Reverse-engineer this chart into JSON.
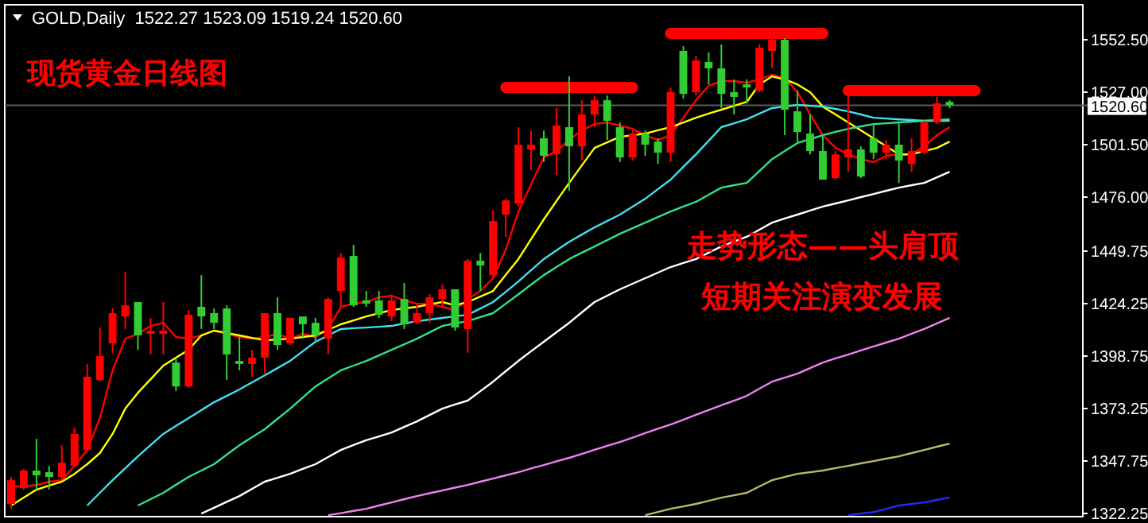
{
  "chart_data": {
    "type": "candlestick",
    "title": "GOLD,Daily  1522.27 1523.09 1519.24 1520.60",
    "annotations": [
      "现货黄金日线图",
      "走势形态——头肩顶",
      "短期关注演变发展"
    ],
    "categories": [
      null,
      null,
      null,
      null,
      null,
      null,
      null,
      null,
      null,
      null,
      null,
      null,
      null,
      null,
      null,
      null,
      null,
      null,
      null,
      null,
      null,
      null,
      null,
      null,
      null,
      null,
      null,
      null,
      null,
      null,
      null,
      null,
      null,
      null,
      null,
      null,
      null,
      null,
      null,
      null,
      null,
      null,
      null,
      null,
      null,
      null,
      null,
      null,
      null,
      null,
      null,
      null,
      null,
      null,
      null,
      null,
      null,
      null,
      null,
      null,
      null,
      null,
      null,
      null,
      null,
      null,
      null,
      null,
      null,
      null,
      null,
      null,
      null,
      null,
      null,
      null,
      null,
      null,
      null,
      null,
      null,
      null,
      null,
      null,
      null
    ],
    "ohlc": [
      [
        1326.9,
        1340.0,
        1324.5,
        1338.4
      ],
      [
        1334.6,
        1343.9,
        1333.8,
        1343.1
      ],
      [
        1343.1,
        1358.5,
        1333.8,
        1340.8
      ],
      [
        1342.3,
        1345.4,
        1333.8,
        1340.0
      ],
      [
        1340.0,
        1355.4,
        1338.4,
        1346.9
      ],
      [
        1345.4,
        1364.0,
        1345.4,
        1360.9
      ],
      [
        1353.1,
        1394.9,
        1353.1,
        1388.7
      ],
      [
        1387.1,
        1412.6,
        1386.3,
        1398.7
      ],
      [
        1404.9,
        1421.9,
        1400.3,
        1419.6
      ],
      [
        1418.0,
        1439.7,
        1411.9,
        1423.4
      ],
      [
        1425.0,
        1425.0,
        1401.8,
        1408.8
      ],
      [
        1409.5,
        1417.3,
        1399.5,
        1411.1
      ],
      [
        1409.5,
        1425.0,
        1399.5,
        1411.1
      ],
      [
        1395.6,
        1397.2,
        1381.7,
        1384.0
      ],
      [
        1384.0,
        1421.1,
        1383.3,
        1418.8
      ],
      [
        1422.7,
        1438.1,
        1411.9,
        1418.0
      ],
      [
        1419.6,
        1421.9,
        1411.9,
        1414.9
      ],
      [
        1421.9,
        1423.4,
        1387.1,
        1399.5
      ],
      [
        1396.4,
        1408.0,
        1391.8,
        1394.9
      ],
      [
        1394.9,
        1401.8,
        1388.7,
        1398.0
      ],
      [
        1398.0,
        1419.6,
        1390.2,
        1419.6
      ],
      [
        1419.6,
        1427.3,
        1401.8,
        1404.1
      ],
      [
        1404.9,
        1417.3,
        1404.1,
        1417.3
      ],
      [
        1418.0,
        1418.0,
        1408.0,
        1414.2
      ],
      [
        1414.9,
        1417.3,
        1405.7,
        1408.8
      ],
      [
        1407.2,
        1427.3,
        1399.5,
        1426.5
      ],
      [
        1430.4,
        1448.9,
        1422.7,
        1446.6
      ],
      [
        1447.4,
        1452.8,
        1422.7,
        1423.4
      ],
      [
        1425.8,
        1430.4,
        1422.7,
        1424.2
      ],
      [
        1425.8,
        1430.4,
        1417.3,
        1418.8
      ],
      [
        1418.0,
        1428.1,
        1415.7,
        1425.8
      ],
      [
        1426.5,
        1434.3,
        1411.9,
        1414.2
      ],
      [
        1414.9,
        1424.2,
        1414.2,
        1419.6
      ],
      [
        1419.6,
        1428.8,
        1414.9,
        1427.3
      ],
      [
        1426.5,
        1433.5,
        1422.7,
        1431.2
      ],
      [
        1431.2,
        1431.2,
        1411.1,
        1412.6
      ],
      [
        1411.9,
        1445.9,
        1400.3,
        1445.1
      ],
      [
        1445.1,
        1448.9,
        1430.4,
        1442.8
      ],
      [
        1438.1,
        1469.8,
        1437.3,
        1464.4
      ],
      [
        1467.5,
        1475.2,
        1456.7,
        1474.4
      ],
      [
        1472.9,
        1510.0,
        1471.4,
        1501.5
      ],
      [
        1499.2,
        1508.4,
        1489.1,
        1501.5
      ],
      [
        1504.6,
        1508.4,
        1493.0,
        1496.1
      ],
      [
        1496.8,
        1519.3,
        1486.8,
        1510.8
      ],
      [
        1510.0,
        1534.7,
        1479.1,
        1500.7
      ],
      [
        1500.7,
        1523.1,
        1493.8,
        1516.2
      ],
      [
        1516.2,
        1525.4,
        1510.0,
        1523.1
      ],
      [
        1523.1,
        1525.4,
        1503.8,
        1513.1
      ],
      [
        1510.0,
        1512.3,
        1493.0,
        1495.3
      ],
      [
        1495.3,
        1508.4,
        1493.8,
        1506.9
      ],
      [
        1506.9,
        1508.4,
        1496.1,
        1501.5
      ],
      [
        1503.0,
        1504.6,
        1492.2,
        1497.6
      ],
      [
        1497.6,
        1529.3,
        1493.0,
        1527.0
      ],
      [
        1547.1,
        1549.4,
        1523.9,
        1526.2
      ],
      [
        1527.0,
        1544.8,
        1525.4,
        1542.4
      ],
      [
        1541.7,
        1546.3,
        1530.8,
        1538.6
      ],
      [
        1538.6,
        1550.2,
        1519.3,
        1526.2
      ],
      [
        1527.0,
        1533.2,
        1516.2,
        1524.7
      ],
      [
        1530.8,
        1533.2,
        1521.6,
        1529.3
      ],
      [
        1527.8,
        1550.2,
        1527.0,
        1548.6
      ],
      [
        1547.1,
        1554.0,
        1538.6,
        1552.5
      ],
      [
        1552.5,
        1553.3,
        1506.1,
        1518.5
      ],
      [
        1517.7,
        1527.8,
        1502.3,
        1507.7
      ],
      [
        1506.9,
        1516.2,
        1496.8,
        1498.4
      ],
      [
        1498.4,
        1506.1,
        1484.5,
        1484.5
      ],
      [
        1485.3,
        1498.4,
        1484.5,
        1496.8
      ],
      [
        1495.3,
        1525.4,
        1488.3,
        1499.2
      ],
      [
        1499.2,
        1500.7,
        1485.3,
        1486.0
      ],
      [
        1504.6,
        1511.5,
        1494.5,
        1497.6
      ],
      [
        1497.6,
        1503.8,
        1494.5,
        1501.5
      ],
      [
        1501.5,
        1512.3,
        1482.9,
        1493.8
      ],
      [
        1492.2,
        1504.6,
        1488.3,
        1498.4
      ],
      [
        1497.6,
        1513.1,
        1496.8,
        1512.3
      ],
      [
        1512.3,
        1524.7,
        1511.5,
        1521.6
      ],
      [
        1522.27,
        1523.09,
        1519.24,
        1520.6
      ],
      null,
      null,
      null,
      null,
      null,
      null,
      null,
      null,
      null,
      null
    ],
    "colors": [
      "#ff0000",
      "#ff0000",
      "#32cd32",
      "#32cd32",
      "#ff0000",
      "#ff0000",
      "#ff0000",
      "#ff0000",
      "#ff0000",
      "#ff0000",
      "#32cd32",
      "#ff0000",
      "#ff0000",
      "#32cd32",
      "#ff0000",
      "#32cd32",
      "#32cd32",
      "#32cd32",
      "#32cd32",
      "#ff0000",
      "#ff0000",
      "#32cd32",
      "#ff0000",
      "#32cd32",
      "#32cd32",
      "#ff0000",
      "#ff0000",
      "#32cd32",
      "#32cd32",
      "#32cd32",
      "#ff0000",
      "#32cd32",
      "#ff0000",
      "#ff0000",
      "#ff0000",
      "#32cd32",
      "#ff0000",
      "#32cd32",
      "#ff0000",
      "#ff0000",
      "#ff0000",
      "#ff0000",
      "#32cd32",
      "#ff0000",
      "#32cd32",
      "#ff0000",
      "#ff0000",
      "#32cd32",
      "#32cd32",
      "#ff0000",
      "#32cd32",
      "#32cd32",
      "#ff0000",
      "#32cd32",
      "#ff0000",
      "#32cd32",
      "#32cd32",
      "#32cd32",
      "#32cd32",
      "#ff0000",
      "#ff0000",
      "#32cd32",
      "#32cd32",
      "#32cd32",
      "#32cd32",
      "#ff0000",
      "#ff0000",
      "#32cd32",
      "#32cd32",
      "#ff0000",
      "#32cd32",
      "#ff0000",
      "#ff0000",
      "#ff0000",
      "#32cd32",
      null,
      null,
      null,
      null,
      null,
      null,
      null,
      null,
      null,
      null
    ],
    "series": [
      {
        "type": "line",
        "color": "#ff0000",
        "values": [
          1335.4,
          1335.4,
          1336.1,
          1337.7,
          1338.4,
          1345.4,
          1353.1,
          1368.6,
          1391.8,
          1407.2,
          1409.5,
          1413.4,
          1414.9,
          1408.0,
          1407.2,
          1408.8,
          1411.1,
          1409.5,
          1408.0,
          1407.2,
          1408.0,
          1409.5,
          1407.2,
          1409.5,
          1408.0,
          1411.9,
          1422.7,
          1424.2,
          1425.0,
          1427.3,
          1428.1,
          1425.8,
          1424.2,
          1424.2,
          1422.7,
          1421.1,
          1426.5,
          1430.4,
          1436.6,
          1450.5,
          1469.0,
          1482.2,
          1495.3,
          1498.4,
          1503.8,
          1508.4,
          1511.5,
          1512.3,
          1510.8,
          1509.2,
          1506.1,
          1503.8,
          1506.1,
          1514.6,
          1523.1,
          1530.1,
          1532.4,
          1532.4,
          1531.6,
          1533.2,
          1535.5,
          1533.9,
          1527.0,
          1516.2,
          1506.1,
          1500.0,
          1496.8,
          1494.5,
          1493.0,
          1496.1,
          1496.8,
          1496.8,
          1500.7,
          1506.1,
          1510.0,
          null,
          null,
          null,
          null,
          null,
          null,
          null,
          null,
          null,
          null
        ]
      },
      {
        "type": "line",
        "color": "#ffff00",
        "values": [
          1326.1,
          1330.0,
          1333.8,
          1335.8,
          1337.7,
          1341.5,
          1346.2,
          1351.6,
          1360.9,
          1373.2,
          1380.9,
          1387.5,
          1394.1,
          1398.0,
          1401.8,
          1408.8,
          1411.1,
          1410.0,
          1408.8,
          1407.6,
          1406.4,
          1406.8,
          1407.2,
          1408.0,
          1408.8,
          1411.5,
          1414.2,
          1416.1,
          1418.0,
          1419.6,
          1421.1,
          1421.9,
          1422.7,
          1423.9,
          1425.0,
          1423.4,
          1425.0,
          1427.7,
          1430.4,
          1438.2,
          1445.9,
          1455.6,
          1465.2,
          1474.1,
          1482.9,
          1491.4,
          1499.9,
          1502.6,
          1505.3,
          1506.1,
          1506.9,
          1508.5,
          1510.0,
          1512.3,
          1514.6,
          1516.6,
          1518.5,
          1520.4,
          1522.3,
          1530.8,
          1534.7,
          1533.2,
          1530.8,
          1527.0,
          1520.0,
          1516.2,
          1512.3,
          1508.5,
          1504.6,
          1500.7,
          1496.8,
          1496.8,
          1498.4,
          1499.9,
          1503.0,
          null,
          null,
          null,
          null,
          null,
          null,
          null,
          null,
          null,
          null
        ]
      },
      {
        "type": "line",
        "color": "#40e0f0",
        "values": [
          null,
          null,
          null,
          null,
          null,
          null,
          1326.1,
          1332.3,
          1338.4,
          1344.2,
          1350.0,
          1355.5,
          1360.9,
          1364.8,
          1368.6,
          1372.5,
          1376.3,
          1379.4,
          1382.5,
          1386.0,
          1389.4,
          1392.9,
          1396.4,
          1401.1,
          1405.7,
          1408.8,
          1411.9,
          1412.3,
          1412.6,
          1413.0,
          1413.4,
          1414.6,
          1415.7,
          1416.5,
          1417.3,
          1418.1,
          1418.8,
          1421.9,
          1425.0,
          1430.0,
          1435.0,
          1440.5,
          1445.9,
          1450.1,
          1454.3,
          1457.8,
          1461.3,
          1464.4,
          1467.5,
          1471.4,
          1475.2,
          1479.9,
          1484.5,
          1490.7,
          1496.8,
          1503.4,
          1510.0,
          1511.9,
          1513.8,
          1516.6,
          1519.3,
          1520.1,
          1520.8,
          1520.4,
          1520.0,
          1518.9,
          1517.7,
          1516.2,
          1514.6,
          1514.2,
          1513.8,
          1513.5,
          1513.1,
          1513.1,
          1513.1,
          null,
          null,
          null,
          null,
          null,
          null,
          null,
          null,
          null,
          null
        ]
      },
      {
        "type": "line",
        "color": "#33e08a",
        "values": [
          null,
          null,
          null,
          null,
          null,
          null,
          null,
          null,
          null,
          null,
          1326.1,
          1329.2,
          1332.3,
          1336.2,
          1340.0,
          1343.1,
          1346.2,
          1350.8,
          1355.4,
          1359.3,
          1363.2,
          1368.2,
          1373.2,
          1378.6,
          1384.0,
          1387.9,
          1391.8,
          1394.1,
          1396.4,
          1399.1,
          1401.8,
          1404.5,
          1407.2,
          1410.3,
          1413.4,
          1414.6,
          1415.7,
          1417.7,
          1419.6,
          1424.2,
          1428.8,
          1433.5,
          1438.1,
          1442.0,
          1445.9,
          1449.0,
          1452.0,
          1455.1,
          1458.2,
          1460.9,
          1463.6,
          1466.3,
          1469.0,
          1471.4,
          1473.7,
          1477.2,
          1480.6,
          1481.8,
          1482.9,
          1488.7,
          1494.5,
          1498.4,
          1502.3,
          1504.2,
          1506.1,
          1507.7,
          1509.2,
          1510.4,
          1511.5,
          1511.9,
          1512.3,
          1512.7,
          1513.1,
          1513.5,
          1513.8,
          null,
          null,
          null,
          null,
          null,
          null,
          null,
          null,
          null,
          null
        ]
      },
      {
        "type": "line",
        "color": "#ffffff",
        "values": [
          null,
          null,
          null,
          null,
          null,
          null,
          null,
          null,
          null,
          null,
          null,
          null,
          null,
          null,
          null,
          1322.2,
          1325.0,
          1327.9,
          1330.7,
          1334.2,
          1337.7,
          1339.6,
          1341.5,
          1343.9,
          1346.2,
          1349.7,
          1353.1,
          1355.5,
          1357.8,
          1359.7,
          1361.6,
          1364.3,
          1367.0,
          1370.1,
          1373.2,
          1375.2,
          1377.1,
          1381.7,
          1386.3,
          1391.4,
          1396.4,
          1401.1,
          1405.7,
          1410.3,
          1414.9,
          1420.0,
          1425.0,
          1428.1,
          1431.2,
          1433.9,
          1436.6,
          1439.3,
          1442.0,
          1444.0,
          1445.9,
          1449.0,
          1452.0,
          1454.4,
          1456.7,
          1460.2,
          1463.6,
          1465.6,
          1467.5,
          1469.5,
          1471.4,
          1472.9,
          1474.4,
          1476.0,
          1477.5,
          1479.1,
          1480.6,
          1481.8,
          1482.9,
          1485.6,
          1488.3,
          null,
          null,
          null,
          null,
          null,
          null,
          null,
          null,
          null,
          null
        ]
      },
      {
        "type": "line",
        "color": "#ee82ee",
        "values": [
          null,
          null,
          null,
          null,
          null,
          null,
          null,
          null,
          null,
          null,
          null,
          null,
          null,
          null,
          null,
          null,
          null,
          null,
          null,
          null,
          null,
          null,
          null,
          null,
          null,
          1321.4,
          1322.4,
          1323.5,
          1324.5,
          1326.1,
          1327.6,
          1329.2,
          1330.7,
          1332.1,
          1333.4,
          1334.8,
          1336.1,
          1337.7,
          1339.2,
          1340.8,
          1342.3,
          1344.1,
          1345.8,
          1347.6,
          1349.3,
          1351.2,
          1353.2,
          1355.1,
          1357.0,
          1359.1,
          1361.3,
          1363.4,
          1365.5,
          1367.8,
          1370.2,
          1372.5,
          1374.8,
          1377.1,
          1379.4,
          1382.9,
          1386.3,
          1388.3,
          1390.2,
          1392.9,
          1395.6,
          1397.6,
          1399.5,
          1401.5,
          1403.4,
          1405.3,
          1407.2,
          1409.6,
          1411.9,
          1414.6,
          1417.3,
          null,
          null,
          null,
          null,
          null,
          null,
          null,
          null,
          null,
          null
        ]
      },
      {
        "type": "line",
        "color": "#bdb76b",
        "values": [
          null,
          null,
          null,
          null,
          null,
          null,
          null,
          null,
          null,
          null,
          null,
          null,
          null,
          null,
          null,
          null,
          null,
          null,
          null,
          null,
          null,
          null,
          null,
          null,
          null,
          null,
          null,
          null,
          null,
          null,
          null,
          null,
          null,
          null,
          null,
          null,
          null,
          null,
          null,
          null,
          null,
          null,
          null,
          null,
          null,
          null,
          null,
          null,
          null,
          null,
          1321.4,
          1323.0,
          1324.5,
          1325.7,
          1326.9,
          1328.4,
          1329.9,
          1331.1,
          1332.3,
          1335.4,
          1338.4,
          1340.0,
          1341.5,
          1342.3,
          1343.1,
          1344.3,
          1345.4,
          1346.6,
          1347.7,
          1348.9,
          1350.0,
          1351.6,
          1353.1,
          1354.7,
          1356.2,
          null,
          null,
          null,
          null,
          null,
          null,
          null,
          null,
          null,
          null
        ]
      },
      {
        "type": "line",
        "color": "#1e2cff",
        "values": [
          null,
          null,
          null,
          null,
          null,
          null,
          null,
          null,
          null,
          null,
          null,
          null,
          null,
          null,
          null,
          null,
          null,
          null,
          null,
          null,
          null,
          null,
          null,
          null,
          null,
          null,
          null,
          null,
          null,
          null,
          null,
          null,
          null,
          null,
          null,
          null,
          null,
          null,
          null,
          null,
          null,
          null,
          null,
          null,
          null,
          null,
          null,
          null,
          null,
          null,
          null,
          null,
          null,
          null,
          null,
          null,
          null,
          null,
          null,
          null,
          null,
          null,
          null,
          null,
          null,
          null,
          1321.4,
          1322.2,
          1322.9,
          1324.5,
          1326.1,
          1326.9,
          1327.6,
          1328.8,
          1330.0,
          null,
          null,
          null,
          null,
          null,
          null,
          null,
          null,
          null,
          null
        ]
      },
      {
        "type": "line",
        "color": "#ff0000",
        "values": [
          null,
          null,
          null,
          null,
          null,
          null,
          null,
          null,
          null,
          null,
          null,
          null,
          null,
          null,
          null,
          null,
          null,
          null,
          null,
          null,
          null,
          null,
          null,
          null,
          null,
          null,
          null,
          null,
          null,
          null,
          null,
          null,
          null,
          null,
          null,
          null,
          null,
          null,
          null,
          1529.3,
          1529.3,
          1529.3,
          1529.3,
          1529.3,
          1529.3,
          1529.3,
          1529.3,
          1529.3,
          1529.3,
          1529.3,
          null,
          null,
          null,
          null,
          null,
          null,
          null,
          null,
          null,
          null,
          null,
          null,
          null,
          null,
          null,
          null,
          null,
          null,
          null,
          null,
          null,
          null,
          null,
          null,
          null,
          null,
          null,
          null,
          null,
          null,
          null,
          null,
          null,
          null,
          null
        ]
      },
      {
        "type": "line",
        "color": "#ff0000",
        "values": [
          null,
          null,
          null,
          null,
          null,
          null,
          null,
          null,
          null,
          null,
          null,
          null,
          null,
          null,
          null,
          null,
          null,
          null,
          null,
          null,
          null,
          null,
          null,
          null,
          null,
          null,
          null,
          null,
          null,
          null,
          null,
          null,
          null,
          null,
          null,
          null,
          null,
          null,
          null,
          null,
          null,
          null,
          null,
          null,
          null,
          null,
          null,
          null,
          null,
          null,
          null,
          null,
          1555.6,
          1555.6,
          1555.6,
          1555.6,
          1555.6,
          1555.6,
          1555.6,
          1555.6,
          1555.6,
          1555.6,
          1555.6,
          1555.6,
          1555.6,
          null,
          null,
          null,
          null,
          null,
          null,
          null,
          null,
          null,
          null,
          null,
          null,
          null,
          null,
          null,
          null,
          null,
          null,
          null,
          null
        ]
      },
      {
        "type": "line",
        "color": "#ff0000",
        "values": [
          null,
          null,
          null,
          null,
          null,
          null,
          null,
          null,
          null,
          null,
          null,
          null,
          null,
          null,
          null,
          null,
          null,
          null,
          null,
          null,
          null,
          null,
          null,
          null,
          null,
          null,
          null,
          null,
          null,
          null,
          null,
          null,
          null,
          null,
          null,
          null,
          null,
          null,
          null,
          null,
          null,
          null,
          null,
          null,
          null,
          null,
          null,
          null,
          null,
          null,
          null,
          null,
          null,
          null,
          null,
          null,
          null,
          null,
          null,
          null,
          null,
          null,
          null,
          null,
          null,
          null,
          1527.8,
          1527.8,
          1527.8,
          1527.8,
          1527.8,
          1527.8,
          1527.8,
          1527.8,
          1527.8,
          1527.8,
          1527.8,
          null,
          null,
          null,
          null,
          null,
          null,
          null,
          null
        ]
      }
    ],
    "ylim": [
      1320.7,
      1569.5
    ],
    "yticks": [
      {
        "value": 1322.25,
        "label": "1322.25"
      },
      {
        "value": 1347.75,
        "label": "1347.75"
      },
      {
        "value": 1373.25,
        "label": "1373.25"
      },
      {
        "value": 1398.75,
        "label": "1398.75"
      },
      {
        "value": 1424.25,
        "label": "1424.25"
      },
      {
        "value": 1449.75,
        "label": "1449.75"
      },
      {
        "value": 1476,
        "label": "1476.00"
      },
      {
        "value": 1501.5,
        "label": "1501.50"
      },
      {
        "value": 1527,
        "label": "1527.00"
      },
      {
        "value": 1552.5,
        "label": "1552.50"
      }
    ],
    "ref_lines": [
      {
        "axis": "y",
        "value": 1520.6,
        "label": "1520.60"
      }
    ],
    "tick_labels": "y"
  }
}
